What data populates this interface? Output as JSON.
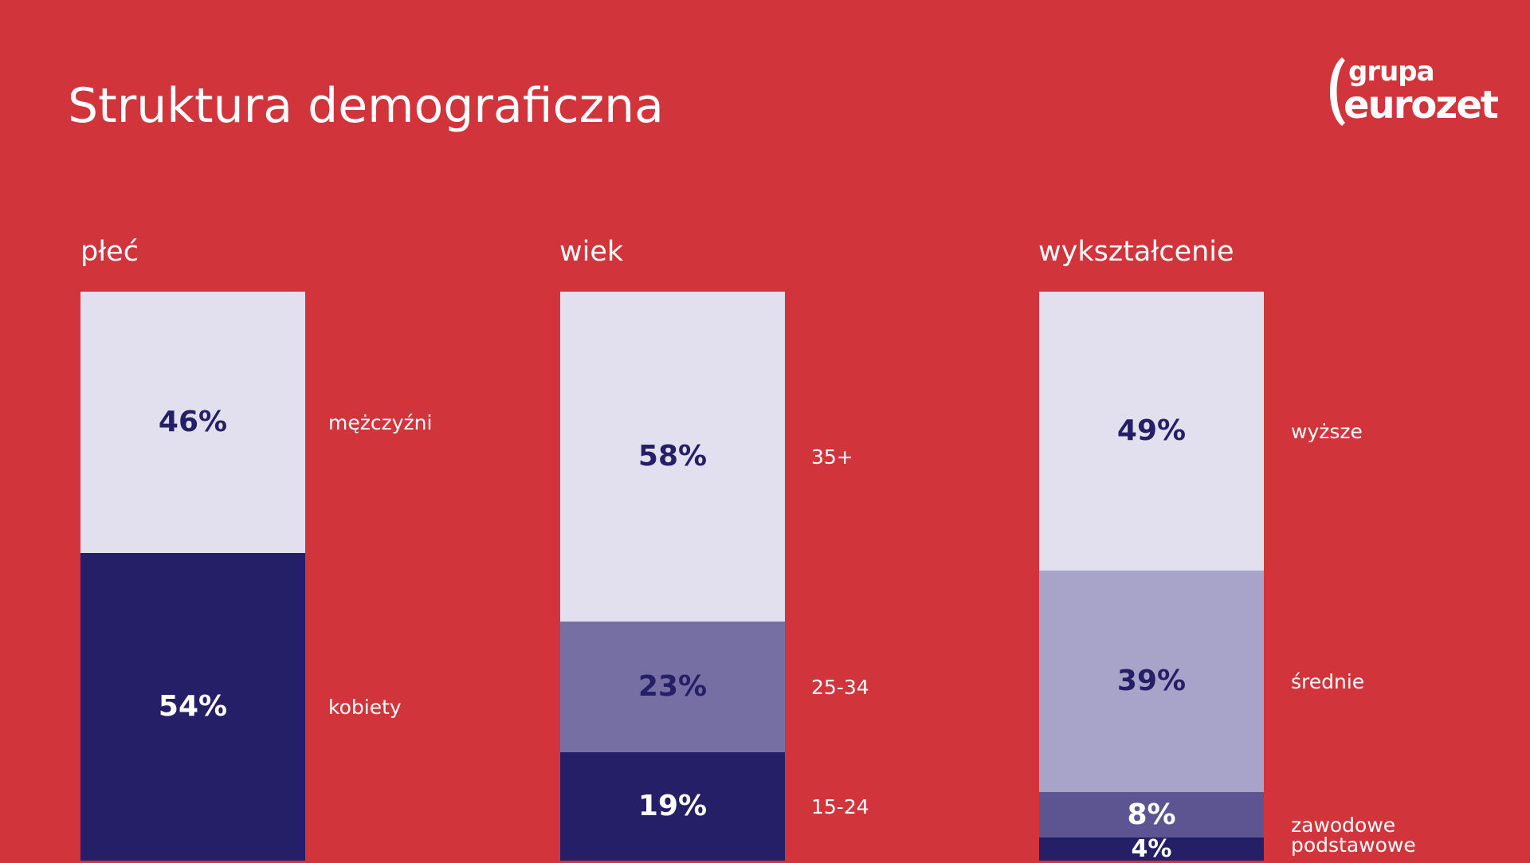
{
  "page": {
    "title": "Struktura demograficzna"
  },
  "logo": {
    "line1": "grupa",
    "line2": "eurozet"
  },
  "colors": {
    "background": "#d1343b",
    "light": "#e2e0ee",
    "mid": "#766fa3",
    "midlight": "#a8a4c9",
    "dark": "#241f66",
    "darkmid": "#5c5591",
    "text_dark": "#241f66",
    "text_light": "#ffffff"
  },
  "chart_data": [
    {
      "type": "bar",
      "title": "płeć",
      "stacked": true,
      "series": [
        {
          "name": "kobiety",
          "value": 54,
          "label": "54%",
          "color": "#241f66",
          "text_color": "#ffffff"
        },
        {
          "name": "mężczyźni",
          "value": 46,
          "label": "46%",
          "color": "#e2e0ee",
          "text_color": "#241f66"
        }
      ]
    },
    {
      "type": "bar",
      "title": "wiek",
      "stacked": true,
      "series": [
        {
          "name": "15-24",
          "value": 19,
          "label": "19%",
          "color": "#241f66",
          "text_color": "#ffffff"
        },
        {
          "name": "25-34",
          "value": 23,
          "label": "23%",
          "color": "#766fa3",
          "text_color": "#241f66"
        },
        {
          "name": "35+",
          "value": 58,
          "label": "58%",
          "color": "#e2e0ee",
          "text_color": "#241f66"
        }
      ]
    },
    {
      "type": "bar",
      "title": "wykształcenie",
      "stacked": true,
      "series": [
        {
          "name": "podstawowe",
          "value": 4,
          "label": "4%",
          "color": "#241f66",
          "text_color": "#ffffff"
        },
        {
          "name": "zawodowe",
          "value": 8,
          "label": "8%",
          "color": "#5c5591",
          "text_color": "#ffffff"
        },
        {
          "name": "średnie",
          "value": 39,
          "label": "39%",
          "color": "#a8a4c9",
          "text_color": "#241f66"
        },
        {
          "name": "wyższe",
          "value": 49,
          "label": "49%",
          "color": "#e2e0ee",
          "text_color": "#241f66"
        }
      ]
    }
  ]
}
